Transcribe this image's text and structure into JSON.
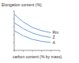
{
  "chart_data": {
    "type": "line",
    "ylabel": "Elongation content (%)",
    "xlabel": "carbon content (% by mass)",
    "x": [
      0,
      0.2,
      0.4,
      0.6,
      0.8
    ],
    "xlim": [
      0,
      1
    ],
    "xticks": [
      0,
      0.2,
      0.4,
      0.6,
      0.8,
      1
    ],
    "ylim": [
      0,
      100
    ],
    "yticks": [
      0,
      20,
      40,
      60,
      80,
      100
    ],
    "tick_labels": false,
    "grid": false,
    "series": [
      {
        "name": "Rm",
        "color": "#6f9fd8",
        "values": [
          92,
          72,
          58,
          50,
          45
        ]
      },
      {
        "name": "Z",
        "color": "#6f9fd8",
        "values": [
          70,
          55,
          44,
          37,
          33
        ]
      },
      {
        "name": "A",
        "color": "#6f9fd8",
        "values": [
          50,
          37,
          28,
          23,
          20
        ]
      }
    ]
  }
}
